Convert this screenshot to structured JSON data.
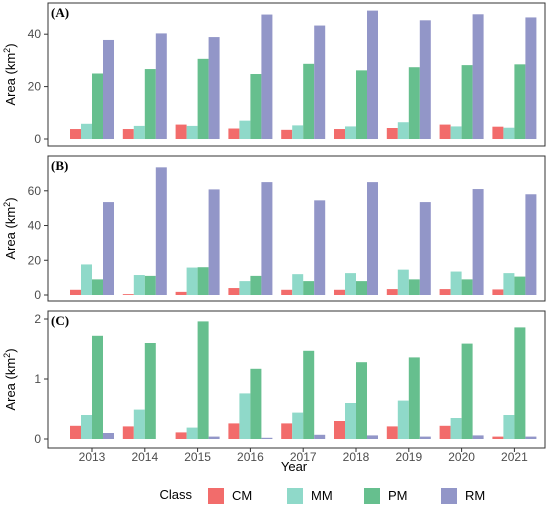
{
  "chart_data": {
    "type": "bar",
    "shared": {
      "categories": [
        "2013",
        "2014",
        "2015",
        "2016",
        "2017",
        "2018",
        "2019",
        "2020",
        "2021"
      ],
      "xlabel": "Year",
      "ylabel_prefix": "Area (km",
      "ylabel_sup": "2",
      "ylabel_suffix": ")",
      "legend": {
        "title": "Class",
        "position": "bottom",
        "items": [
          {
            "label": "CM",
            "color": "#f26c6b"
          },
          {
            "label": "MM",
            "color": "#8fd9c9"
          },
          {
            "label": "PM",
            "color": "#66bf8e"
          },
          {
            "label": "RM",
            "color": "#9296c8"
          }
        ]
      }
    },
    "panels": [
      {
        "label": "(A)",
        "ylim": [
          0,
          50
        ],
        "yticks": [
          0,
          20,
          40
        ],
        "series": [
          {
            "name": "CM",
            "values": [
              3.8,
              3.8,
              5.5,
              4.0,
              3.5,
              3.8,
              4.2,
              5.5,
              4.7
            ]
          },
          {
            "name": "MM",
            "values": [
              5.8,
              5.0,
              5.0,
              7.0,
              5.2,
              4.8,
              6.4,
              4.8,
              4.3
            ]
          },
          {
            "name": "PM",
            "values": [
              25.0,
              26.7,
              30.6,
              24.8,
              28.7,
              26.2,
              27.4,
              28.2,
              28.5
            ]
          },
          {
            "name": "RM",
            "values": [
              37.8,
              40.3,
              38.9,
              47.5,
              43.3,
              49.0,
              45.3,
              47.6,
              46.4
            ]
          }
        ]
      },
      {
        "label": "(B)",
        "ylim": [
          0,
          76
        ],
        "yticks": [
          0,
          20,
          40,
          60
        ],
        "series": [
          {
            "name": "CM",
            "values": [
              3.0,
              0.5,
              1.8,
              4.0,
              3.0,
              3.0,
              3.4,
              3.4,
              3.2
            ]
          },
          {
            "name": "MM",
            "values": [
              17.6,
              11.5,
              15.8,
              8.0,
              12.0,
              12.6,
              14.6,
              13.5,
              12.6
            ]
          },
          {
            "name": "PM",
            "values": [
              9.0,
              11.0,
              16.0,
              11.0,
              8.0,
              8.0,
              9.0,
              9.0,
              10.6
            ]
          },
          {
            "name": "RM",
            "values": [
              53.5,
              73.5,
              60.8,
              65.0,
              54.5,
              65.0,
              53.5,
              61.0,
              58.0
            ]
          }
        ]
      },
      {
        "label": "(C)",
        "ylim": [
          0,
          2.05
        ],
        "yticks": [
          0,
          1,
          2
        ],
        "series": [
          {
            "name": "CM",
            "values": [
              0.22,
              0.21,
              0.11,
              0.26,
              0.26,
              0.3,
              0.21,
              0.22,
              0.04
            ]
          },
          {
            "name": "MM",
            "values": [
              0.4,
              0.49,
              0.19,
              0.76,
              0.44,
              0.6,
              0.64,
              0.35,
              0.4
            ]
          },
          {
            "name": "PM",
            "values": [
              1.72,
              1.6,
              1.96,
              1.17,
              1.47,
              1.28,
              1.36,
              1.59,
              1.86
            ]
          },
          {
            "name": "RM",
            "values": [
              0.1,
              0.0,
              0.04,
              0.02,
              0.07,
              0.06,
              0.04,
              0.06,
              0.04
            ]
          }
        ]
      }
    ]
  }
}
